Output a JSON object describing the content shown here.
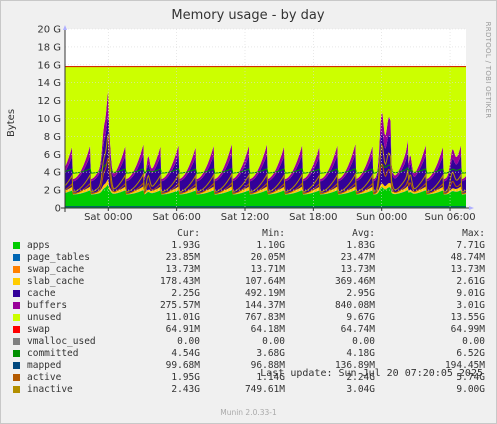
{
  "chart_data": {
    "type": "area",
    "title": "Memory usage - by day",
    "ylabel": "Bytes",
    "side_label": "RRDTOOL / TOBI OETIKER",
    "y_ticks": [
      "0",
      "2 G",
      "4 G",
      "6 G",
      "8 G",
      "10 G",
      "12 G",
      "14 G",
      "16 G",
      "18 G",
      "20 G"
    ],
    "ylim": [
      0,
      20
    ],
    "y_unit": "GiB",
    "x_ticks": [
      "Sat 00:00",
      "Sat 06:00",
      "Sat 12:00",
      "Sat 18:00",
      "Sun 00:00",
      "Sun 06:00"
    ],
    "x_tick_hours": [
      0,
      6,
      12,
      18,
      24,
      30
    ],
    "xlim_hours": [
      -3.8,
      31.4
    ],
    "total_memory_line": 15.8,
    "grid": true,
    "stacking_order": [
      "apps",
      "page_tables",
      "swap_cache",
      "slab_cache",
      "cache",
      "buffers",
      "unused",
      "swap"
    ],
    "lines": [
      "vmalloc_used",
      "committed",
      "mapped",
      "active",
      "inactive"
    ],
    "series": [
      {
        "name": "apps",
        "color": "#00cc00",
        "cur": "1.93G",
        "min": "1.10G",
        "avg": "1.83G",
        "max": "7.71G"
      },
      {
        "name": "page_tables",
        "color": "#0066b3",
        "cur": "23.85M",
        "min": "20.05M",
        "avg": "23.47M",
        "max": "48.74M"
      },
      {
        "name": "swap_cache",
        "color": "#ff8000",
        "cur": "13.73M",
        "min": "13.71M",
        "avg": "13.73M",
        "max": "13.73M"
      },
      {
        "name": "slab_cache",
        "color": "#ffcc00",
        "cur": "178.43M",
        "min": "107.64M",
        "avg": "369.46M",
        "max": "2.61G"
      },
      {
        "name": "cache",
        "color": "#330099",
        "cur": "2.25G",
        "min": "492.19M",
        "avg": "2.95G",
        "max": "9.01G"
      },
      {
        "name": "buffers",
        "color": "#990099",
        "cur": "275.57M",
        "min": "144.37M",
        "avg": "840.08M",
        "max": "3.01G"
      },
      {
        "name": "unused",
        "color": "#ccff00",
        "cur": "11.01G",
        "min": "767.83M",
        "avg": "9.67G",
        "max": "13.55G"
      },
      {
        "name": "swap",
        "color": "#ff0000",
        "cur": "64.91M",
        "min": "64.18M",
        "avg": "64.74M",
        "max": "64.99M"
      },
      {
        "name": "vmalloc_used",
        "color": "#808080",
        "cur": "0.00",
        "min": "0.00",
        "avg": "0.00",
        "max": "0.00"
      },
      {
        "name": "committed",
        "color": "#008f00",
        "cur": "4.54G",
        "min": "3.68G",
        "avg": "4.18G",
        "max": "6.52G"
      },
      {
        "name": "mapped",
        "color": "#00487d",
        "cur": "99.68M",
        "min": "96.88M",
        "avg": "136.89M",
        "max": "194.45M"
      },
      {
        "name": "active",
        "color": "#b35a00",
        "cur": "1.95G",
        "min": "1.14G",
        "avg": "2.24G",
        "max": "5.74G"
      },
      {
        "name": "inactive",
        "color": "#b38f00",
        "cur": "2.43G",
        "min": "749.61M",
        "avg": "3.04G",
        "max": "9.00G"
      }
    ],
    "column_headers": [
      "Cur:",
      "Min:",
      "Avg:",
      "Max:"
    ]
  },
  "footer": {
    "last_update": "Last update:  Sun Jul 20 07:20:05 2025",
    "version": "Munin 2.0.33-1"
  }
}
